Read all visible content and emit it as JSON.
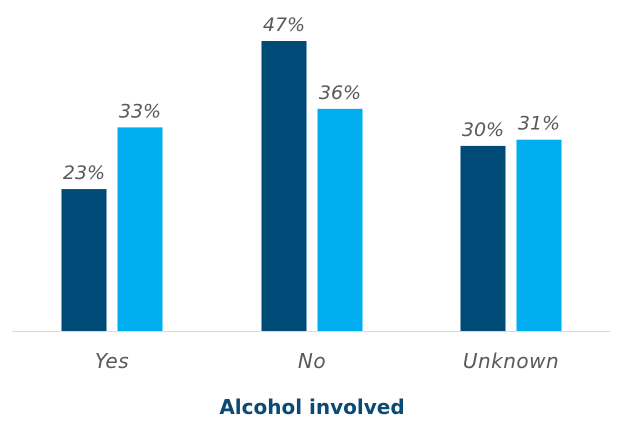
{
  "chart_data": {
    "type": "bar",
    "categories": [
      "Yes",
      "No",
      "Unknown"
    ],
    "series": [
      {
        "values": [
          23,
          47,
          30
        ],
        "color": "#004a77"
      },
      {
        "values": [
          33,
          36,
          31
        ],
        "color": "#00adef"
      }
    ],
    "value_labels": [
      [
        "23%",
        "47%",
        "30%"
      ],
      [
        "33%",
        "36%",
        "31%"
      ]
    ],
    "xlabel": "Alcohol involved",
    "ylabel": "",
    "ylim": [
      0,
      50
    ],
    "grid": false,
    "axis_color": "#d9d9d9",
    "title_color": "#0b4a75",
    "label_color": "#595959"
  }
}
